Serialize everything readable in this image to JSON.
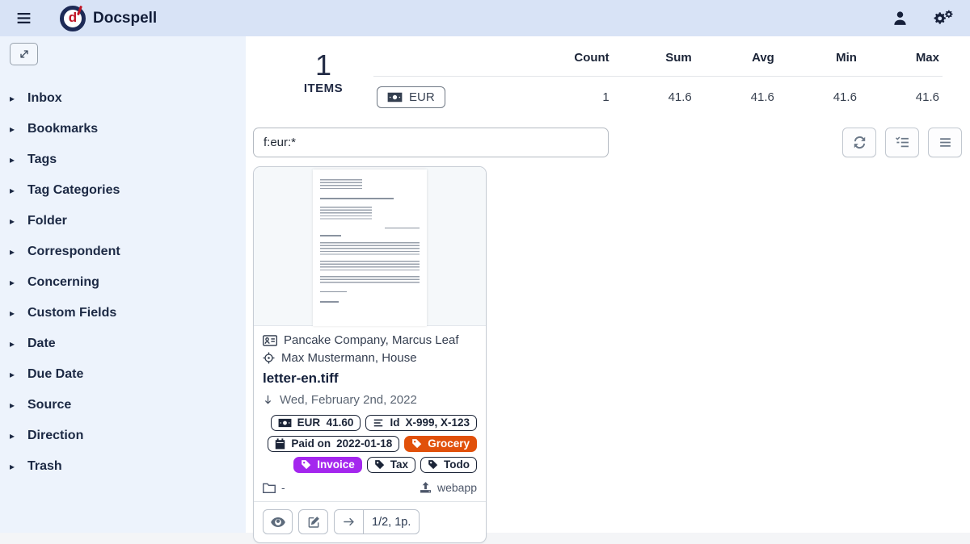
{
  "topbar": {
    "title": "Docspell"
  },
  "sidebar": {
    "items": [
      {
        "label": "Inbox"
      },
      {
        "label": "Bookmarks"
      },
      {
        "label": "Tags"
      },
      {
        "label": "Tag Categories"
      },
      {
        "label": "Folder"
      },
      {
        "label": "Correspondent"
      },
      {
        "label": "Concerning"
      },
      {
        "label": "Custom Fields"
      },
      {
        "label": "Date"
      },
      {
        "label": "Due Date"
      },
      {
        "label": "Source"
      },
      {
        "label": "Direction"
      },
      {
        "label": "Trash"
      }
    ]
  },
  "stats": {
    "count_number": "1",
    "count_label": "ITEMS",
    "currency_label": "EUR",
    "table": {
      "headers": [
        "Count",
        "Sum",
        "Avg",
        "Min",
        "Max"
      ],
      "values": [
        "1",
        "41.6",
        "41.6",
        "41.6",
        "41.6"
      ]
    }
  },
  "search": {
    "value": "f:eur:*"
  },
  "card": {
    "correspondent": "Pancake Company, Marcus Leaf",
    "concerning": "Max Mustermann, House",
    "filename": "letter-en.tiff",
    "date": "Wed, February 2nd, 2022",
    "badges": {
      "amount": "EUR  41.60",
      "id_label": "Id",
      "id_value": "X-999, X-123",
      "paid_label": "Paid on",
      "paid_value": "2022-01-18"
    },
    "tags": [
      {
        "label": "Grocery",
        "bg": "#e1500a",
        "fg": "#ffffff",
        "row": 2
      },
      {
        "label": "Invoice",
        "bg": "#a427ee",
        "fg": "#ffffff",
        "row": 3
      },
      {
        "label": "Tax",
        "bg": "#ffffff",
        "fg": "#1b2437",
        "row": 3
      },
      {
        "label": "Todo",
        "bg": "#ffffff",
        "fg": "#1b2437",
        "row": 3
      }
    ],
    "folder": "-",
    "source": "webapp",
    "pages": "1/2, 1p."
  },
  "colors": {
    "topbar_bg": "#d8e3f6",
    "sidebar_bg": "#edf3fc",
    "navy_text": "#1b2437",
    "tag_orange": "#e1500a",
    "tag_purple": "#a427ee"
  },
  "icons": [
    "menu-bars",
    "user",
    "cogs",
    "expand",
    "caret-right",
    "money-bill",
    "align-lines",
    "calendar",
    "tag",
    "address-card",
    "crosshairs",
    "long-arrow-down",
    "folder",
    "upload",
    "eye",
    "edit",
    "arrow-right",
    "refresh",
    "tasks",
    "bars"
  ]
}
